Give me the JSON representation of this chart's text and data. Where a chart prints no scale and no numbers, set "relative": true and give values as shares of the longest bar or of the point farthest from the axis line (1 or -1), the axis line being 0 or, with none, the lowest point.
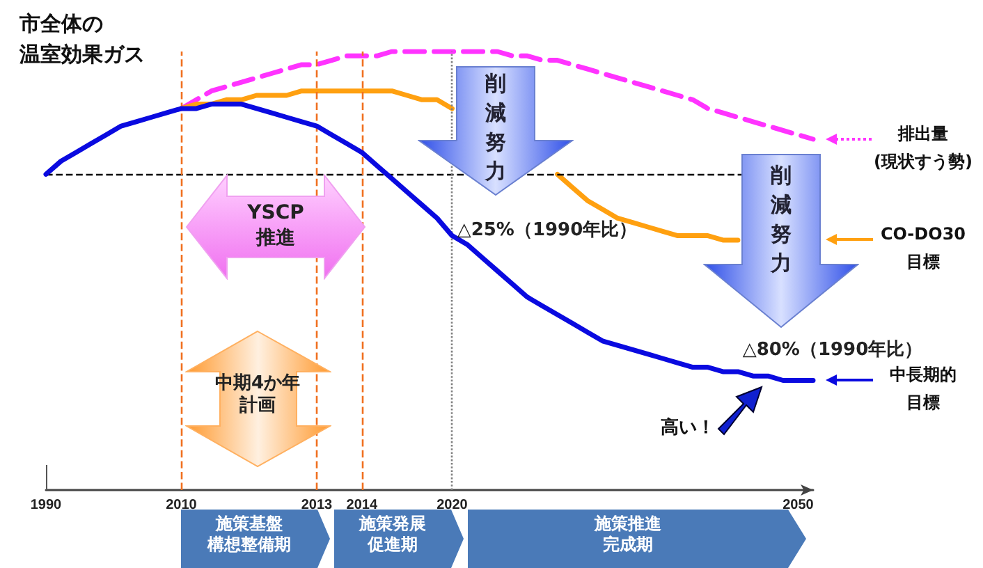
{
  "chart_data": {
    "type": "line",
    "relative": true,
    "ylabel": "市全体の温室効果ガス",
    "categories": [
      "1990",
      null,
      null,
      null,
      null,
      null,
      null,
      null,
      null,
      "2010",
      null,
      null,
      null,
      null,
      null,
      null,
      null,
      null,
      "2013",
      null,
      null,
      "2014",
      null,
      null,
      null,
      null,
      null,
      "2020",
      null,
      null,
      null,
      null,
      null,
      null,
      null,
      null,
      null,
      null,
      null,
      null,
      null,
      null,
      null,
      null,
      null,
      null,
      null,
      null,
      null,
      null,
      "2050",
      null
    ],
    "series": [
      {
        "name": "排出量\n(現状すう勢)",
        "color": "#ff33ff",
        "line_style": "dashed",
        "values": [
          null,
          null,
          null,
          null,
          null,
          null,
          null,
          null,
          null,
          0.87,
          0.89,
          0.91,
          0.92,
          0.93,
          0.94,
          0.95,
          0.96,
          0.97,
          0.97,
          0.98,
          0.99,
          0.99,
          0.99,
          1,
          1,
          1,
          1,
          1,
          1,
          1,
          1,
          0.99,
          0.99,
          0.98,
          0.98,
          0.97,
          0.96,
          0.95,
          0.94,
          0.93,
          0.92,
          0.91,
          0.9,
          0.89,
          0.87,
          0.86,
          0.85,
          0.84,
          0.83,
          0.82,
          0.81,
          0.8
        ]
      },
      {
        "name": "CO-DO30\n目標",
        "color": "#ffa010",
        "values": [
          null,
          null,
          null,
          null,
          null,
          null,
          null,
          null,
          null,
          0.87,
          0.88,
          0.88,
          0.89,
          0.89,
          0.9,
          0.9,
          0.9,
          0.91,
          0.91,
          0.91,
          0.91,
          0.91,
          0.91,
          0.91,
          0.9,
          0.89,
          0.89,
          0.87,
          null,
          null,
          null,
          null,
          null,
          null,
          0.72,
          0.69,
          0.66,
          0.64,
          0.62,
          0.61,
          0.6,
          0.59,
          0.58,
          0.58,
          0.58,
          0.57,
          0.57,
          null,
          null,
          null,
          null,
          null
        ]
      },
      {
        "name": "中長期的目標",
        "color": "#0a0ae0",
        "values": [
          0.72,
          0.75,
          0.77,
          0.79,
          0.81,
          0.83,
          0.84,
          0.85,
          0.86,
          0.87,
          0.87,
          0.88,
          0.88,
          0.88,
          0.87,
          0.86,
          0.85,
          0.84,
          0.83,
          0.81,
          0.79,
          0.77,
          0.74,
          0.71,
          0.68,
          0.65,
          0.62,
          0.58,
          0.56,
          0.53,
          0.5,
          0.47,
          0.44,
          0.42,
          0.4,
          0.38,
          0.36,
          0.34,
          0.33,
          0.32,
          0.31,
          0.3,
          0.29,
          0.28,
          0.28,
          0.27,
          0.27,
          0.26,
          0.26,
          0.25,
          0.25,
          0.25
        ]
      }
    ],
    "ref_lines": [
      {
        "axis": "y",
        "value": 0.72,
        "color": "#000000",
        "line_style": "dashed"
      },
      {
        "axis": "x",
        "value": "2010",
        "color": "#f07020",
        "line_style": "dashed"
      },
      {
        "axis": "x",
        "value": "2013",
        "color": "#f07020",
        "line_style": "dashed"
      },
      {
        "axis": "x",
        "value": "2014",
        "color": "#f07020",
        "line_style": "dashed"
      },
      {
        "axis": "x",
        "value": "2020",
        "color": "#808080",
        "line_style": "dotted"
      }
    ],
    "annotations": [
      "削減努力",
      "△25%（1990年比）",
      "削減努力",
      "△80%（1990年比）",
      "YSCP\n推進",
      "中期4か年計画",
      "施策基盤構想整備期",
      "施策発展促進期",
      "施策推進完成期",
      "高い！"
    ],
    "tick_labels": "x",
    "grid": false,
    "legend": "right",
    "marker": "none"
  }
}
